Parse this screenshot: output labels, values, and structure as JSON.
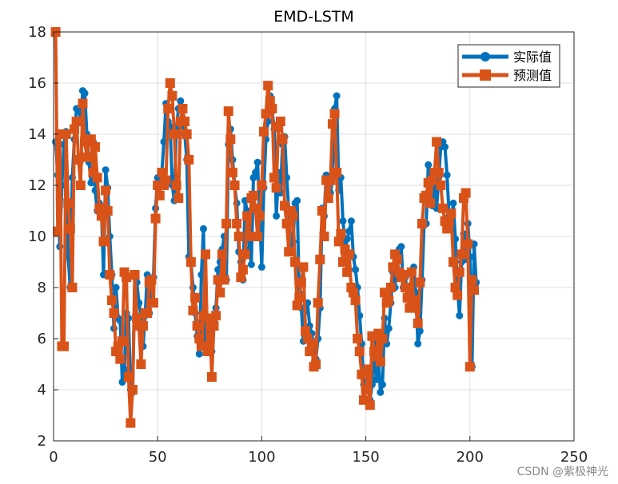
{
  "chart_data": {
    "type": "line",
    "title": "EMD-LSTM",
    "xlabel": "",
    "ylabel": "",
    "xlim": [
      0,
      250
    ],
    "ylim": [
      2,
      18
    ],
    "xticks": [
      0,
      50,
      100,
      150,
      200,
      250
    ],
    "yticks": [
      2,
      4,
      6,
      8,
      10,
      12,
      14,
      16,
      18
    ],
    "xtick_labels": [
      "0",
      "50",
      "100",
      "150",
      "200",
      "250"
    ],
    "ytick_labels": [
      "2",
      "4",
      "6",
      "8",
      "10",
      "12",
      "14",
      "16",
      "18"
    ],
    "grid": true,
    "legend_position": "top-right",
    "series": [
      {
        "name": "实际值",
        "color": "#0072BD",
        "marker": "circle",
        "values": [
          13.7,
          12.4,
          9.6,
          12.0,
          13.6,
          14.1,
          9.2,
          8.0,
          12.3,
          13.8,
          15.0,
          15.0,
          14.5,
          15.7,
          15.6,
          14.0,
          12.9,
          12.1,
          13.7,
          11.8,
          11.0,
          11.3,
          11.0,
          8.5,
          12.6,
          11.9,
          10.0,
          8.5,
          6.4,
          8.0,
          6.8,
          6.7,
          4.3,
          4.8,
          7.0,
          6.8,
          4.0,
          3.9,
          8.4,
          8.2,
          7.4,
          6.9,
          5.7,
          6.9,
          8.5,
          7.0,
          8.0,
          8.4,
          11.1,
          12.3,
          12.2,
          12.5,
          13.7,
          15.2,
          14.5,
          14.3,
          12.0,
          11.4,
          14.2,
          15.0,
          15.3,
          14.4,
          14.0,
          13.0,
          9.2,
          9.0,
          8.0,
          7.0,
          6.1,
          5.4,
          8.5,
          10.3,
          6.0,
          6.4,
          6.0,
          5.5,
          6.7,
          7.2,
          8.7,
          9.0,
          9.5,
          10.0,
          8.3,
          13.6,
          14.2,
          13.0,
          12.0,
          11.3,
          9.4,
          9.0,
          8.3,
          11.4,
          11.0,
          9.5,
          8.9,
          12.3,
          12.5,
          12.9,
          10.8,
          8.8,
          11.9,
          13.8,
          14.5,
          15.5,
          14.9,
          14.2,
          10.8,
          12.5,
          11.7,
          13.6,
          13.9,
          12.3,
          11.0,
          9.7,
          9.8,
          11.3,
          11.4,
          7.8,
          7.2,
          5.9,
          7.1,
          7.4,
          6.5,
          6.2,
          5.6,
          5.2,
          6.0,
          7.2,
          11.1,
          10.8,
          12.4,
          12.0,
          11.7,
          12.3,
          15.0,
          15.5,
          11.8,
          12.3,
          10.6,
          9.8,
          9.9,
          10.2,
          10.6,
          9.2,
          8.7,
          8.0,
          6.9,
          5.8,
          4.2,
          4.5,
          4.7,
          3.6,
          4.2,
          5.8,
          4.4,
          5.3,
          3.9,
          4.2,
          6.8,
          5.8,
          6.4,
          7.4,
          8.6,
          8.0,
          9.0,
          9.5,
          9.6,
          8.0,
          8.4,
          7.6,
          7.3,
          8.1,
          8.8,
          7.8,
          5.8,
          6.3,
          8.3,
          10.5,
          10.5,
          12.8,
          11.5,
          11.2,
          11.9,
          11.1,
          12.3,
          13.5,
          13.7,
          13.5,
          12.4,
          10.8,
          10.6,
          11.3,
          9.9,
          8.0,
          6.9,
          9.0,
          10.1,
          9.1,
          10.5,
          9.2,
          4.9,
          9.7,
          8.2
        ]
      },
      {
        "name": "预测值",
        "color": "#D95319",
        "marker": "square",
        "values": [
          18.0,
          10.2,
          14.0,
          5.7,
          5.7,
          14.0,
          11.3,
          10.3,
          8.0,
          14.2,
          14.5,
          13.0,
          12.0,
          15.2,
          13.7,
          13.1,
          13.8,
          13.8,
          12.5,
          13.5,
          12.3,
          11.1,
          10.8,
          9.8,
          11.8,
          11.0,
          8.5,
          7.5,
          7.0,
          5.5,
          5.7,
          5.2,
          5.9,
          8.6,
          8.4,
          4.5,
          2.7,
          4.0,
          8.5,
          6.8,
          6.5,
          5.0,
          6.5,
          7.0,
          7.0,
          8.2,
          8.3,
          7.4,
          10.7,
          12.0,
          11.6,
          12.5,
          12.0,
          12.2,
          15.0,
          16.0,
          15.5,
          14.0,
          12.0,
          11.5,
          14.5,
          15.0,
          14.5,
          14.0,
          13.0,
          9.0,
          7.1,
          7.6,
          6.5,
          6.0,
          5.7,
          6.9,
          9.3,
          5.5,
          6.8,
          4.5,
          6.5,
          6.9,
          8.3,
          7.8,
          9.3,
          8.3,
          10.5,
          14.9,
          13.8,
          12.5,
          12.0,
          10.5,
          10.0,
          8.4,
          8.7,
          9.3,
          10.8,
          10.0,
          11.5,
          11.6,
          11.1,
          10.0,
          10.8,
          12.0,
          14.1,
          14.8,
          15.9,
          15.3,
          15.0,
          12.3,
          11.9,
          14.3,
          14.5,
          13.8,
          11.2,
          10.5,
          9.4,
          11.0,
          10.8,
          9.0,
          7.3,
          7.6,
          8.2,
          8.8,
          6.3,
          6.0,
          5.5,
          5.8,
          4.9,
          5.0,
          7.4,
          9.1,
          11.0,
          10.0,
          12.2,
          11.5,
          12.2,
          14.4,
          14.8,
          12.5,
          9.8,
          10.1,
          9.0,
          9.5,
          8.6,
          9.3,
          8.0,
          7.8,
          7.5,
          6.0,
          5.5,
          4.6,
          3.6,
          4.0,
          4.8,
          3.4,
          6.1,
          5.5,
          5.3,
          6.2,
          5.1,
          6.0,
          7.8,
          7.4,
          7.5,
          8.0,
          8.8,
          9.3,
          9.1,
          8.6,
          8.4,
          8.5,
          8.0,
          7.6,
          7.2,
          8.6,
          7.5,
          7.2,
          6.6,
          8.2,
          10.5,
          11.5,
          11.6,
          12.1,
          11.3,
          12.2,
          12.5,
          13.7,
          12.5,
          12.0,
          11.1,
          10.6,
          10.3,
          10.6,
          10.9,
          9.0,
          8.0,
          7.7,
          8.6,
          9.3,
          11.5,
          11.7,
          9.7,
          4.9,
          8.3,
          7.9
        ]
      }
    ]
  },
  "watermark": "CSDN @紫极神光"
}
